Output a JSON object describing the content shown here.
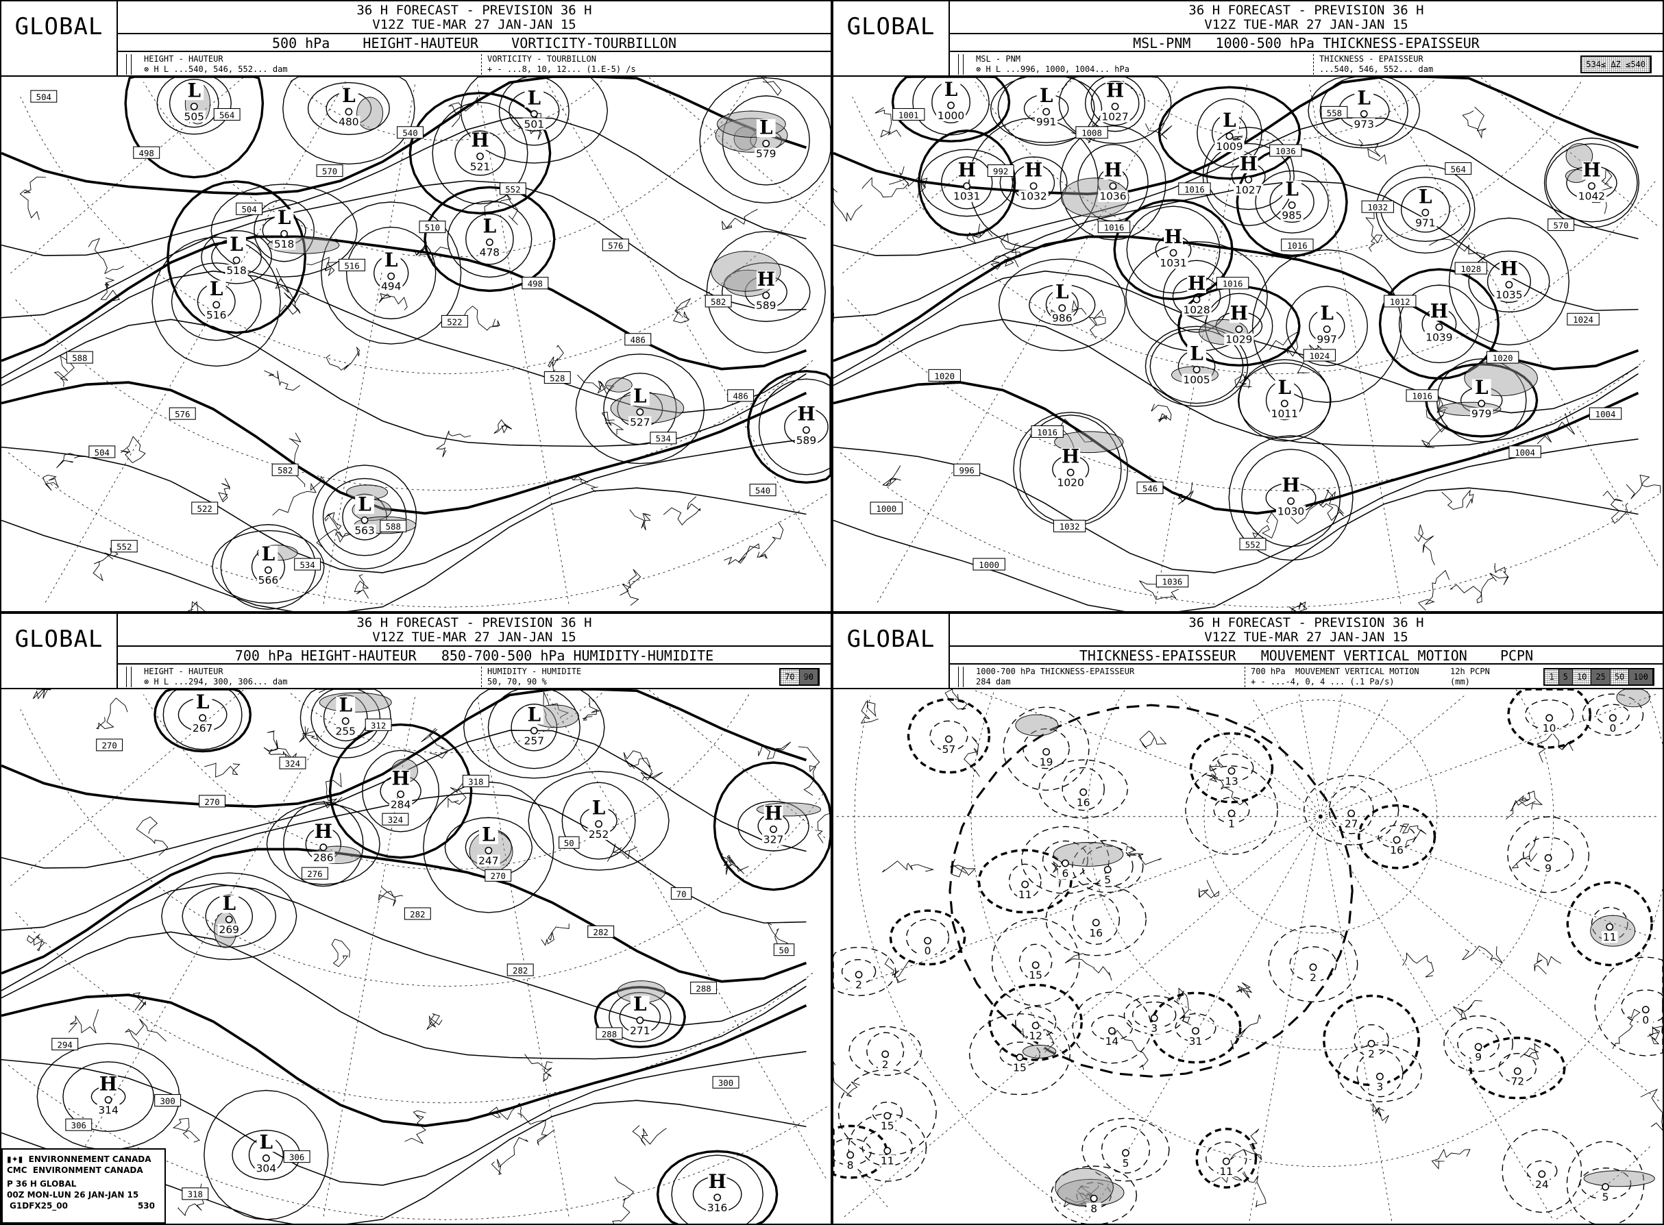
{
  "panels": [
    {
      "header": {
        "brand": "GLOBAL",
        "line1": "36 H FORECAST - PREVISION 36 H",
        "line2": "V12Z TUE-MAR 27 JAN-JAN 15",
        "title": "500 hPa    HEIGHT-HAUTEUR    VORTICITY-TOURBILLON",
        "legend_left_1": "HEIGHT - HAUTEUR",
        "legend_left_2": "⊗ H L ...540, 546, 552... dam",
        "legend_right_1": "VORTICITY - TOURBILLON",
        "legend_right_2": "+ - ...8, 10, 12... (1.E-5) /s"
      },
      "centers": [
        {
          "t": "L",
          "v": "505"
        },
        {
          "t": "L",
          "v": "480"
        },
        {
          "t": "L",
          "v": "501"
        },
        {
          "t": "H",
          "v": "521"
        },
        {
          "t": "L",
          "v": "579"
        },
        {
          "t": "L",
          "v": "518"
        },
        {
          "t": "L",
          "v": "518"
        },
        {
          "t": "L",
          "v": "516"
        },
        {
          "t": "L",
          "v": "494"
        },
        {
          "t": "L",
          "v": "478"
        },
        {
          "t": "H",
          "v": "589"
        },
        {
          "t": "L",
          "v": "527"
        },
        {
          "t": "H",
          "v": "589"
        },
        {
          "t": "L",
          "v": "563"
        },
        {
          "t": "L",
          "v": "566"
        }
      ],
      "contour_labels": [
        "504",
        "498",
        "504",
        "516",
        "522",
        "528",
        "534",
        "540",
        "552",
        "564",
        "570",
        "510",
        "498",
        "486",
        "486",
        "504",
        "522",
        "534",
        "540",
        "552",
        "576",
        "582",
        "588",
        "576",
        "582",
        "588"
      ]
    },
    {
      "header": {
        "brand": "GLOBAL",
        "line1": "36 H FORECAST - PREVISION 36 H",
        "line2": "V12Z TUE-MAR 27 JAN-JAN 15",
        "title": "MSL-PNM   1000-500 hPa THICKNESS-EPAISSEUR",
        "legend_left_1": "MSL - PNM",
        "legend_left_2": "⊗ H L ...996, 1000, 1004... hPa",
        "legend_right_1": "THICKNESS - EPAISSEUR",
        "legend_right_2": "...540, 546, 552... dam",
        "key": [
          "534≤ ΔZ ≤540"
        ]
      },
      "centers": [
        {
          "t": "L",
          "v": "1000"
        },
        {
          "t": "L",
          "v": "991"
        },
        {
          "t": "H",
          "v": "1027"
        },
        {
          "t": "L",
          "v": "1009"
        },
        {
          "t": "H",
          "v": "1027"
        },
        {
          "t": "L",
          "v": "973"
        },
        {
          "t": "H",
          "v": "1031"
        },
        {
          "t": "H",
          "v": "1032"
        },
        {
          "t": "H",
          "v": "1036"
        },
        {
          "t": "L",
          "v": "985"
        },
        {
          "t": "L",
          "v": "971"
        },
        {
          "t": "H",
          "v": "1042"
        },
        {
          "t": "H",
          "v": "1031"
        },
        {
          "t": "L",
          "v": "986"
        },
        {
          "t": "H",
          "v": "1028"
        },
        {
          "t": "H",
          "v": "1029"
        },
        {
          "t": "L",
          "v": "997"
        },
        {
          "t": "H",
          "v": "1035"
        },
        {
          "t": "H",
          "v": "1039"
        },
        {
          "t": "L",
          "v": "1005"
        },
        {
          "t": "L",
          "v": "1011"
        },
        {
          "t": "L",
          "v": "979"
        },
        {
          "t": "H",
          "v": "1020"
        },
        {
          "t": "H",
          "v": "1030"
        }
      ],
      "contour_labels": [
        "1001",
        "992",
        "1016",
        "1016",
        "1024",
        "1016",
        "1004",
        "1000",
        "1000",
        "1008",
        "1016",
        "1016",
        "1012",
        "1020",
        "1004",
        "996",
        "1032",
        "1036",
        "1036",
        "1032",
        "1028",
        "1024",
        "1020",
        "1016",
        "546",
        "552",
        "558",
        "564",
        "570"
      ]
    },
    {
      "header": {
        "brand": "GLOBAL",
        "line1": "36 H FORECAST - PREVISION 36 H",
        "line2": "V12Z TUE-MAR 27 JAN-JAN 15",
        "title": "700 hPa HEIGHT-HAUTEUR   850-700-500 hPa HUMIDITY-HUMIDITE",
        "legend_left_1": "HEIGHT - HAUTEUR",
        "legend_left_2": "⊗ H L ...294, 300, 306... dam",
        "legend_right_1": "HUMIDITY - HUMIDITE",
        "legend_right_2": "50, 70, 90 %",
        "key": [
          "70",
          "90"
        ]
      },
      "centers": [
        {
          "t": "L",
          "v": "267"
        },
        {
          "t": "L",
          "v": "255"
        },
        {
          "t": "L",
          "v": "257"
        },
        {
          "t": "H",
          "v": "284"
        },
        {
          "t": "H",
          "v": "286"
        },
        {
          "t": "L",
          "v": "252"
        },
        {
          "t": "H",
          "v": "327"
        },
        {
          "t": "L",
          "v": "247"
        },
        {
          "t": "L",
          "v": "269"
        },
        {
          "t": "L",
          "v": "271"
        },
        {
          "t": "H",
          "v": "314"
        },
        {
          "t": "L",
          "v": "304"
        },
        {
          "t": "H",
          "v": "316"
        }
      ],
      "contour_labels": [
        "270",
        "270",
        "276",
        "282",
        "282",
        "288",
        "300",
        "306",
        "318",
        "324",
        "324",
        "270",
        "282",
        "288",
        "294",
        "300",
        "306",
        "312",
        "318",
        "50",
        "70",
        "50"
      ],
      "credits": {
        "line1": "ENVIRONNEMENT CANADA",
        "line2": "ENVIRONMENT CANADA",
        "cmc": "CMC",
        "line3": "P 36 H GLOBAL",
        "line4": "00Z MON-LUN 26 JAN-JAN 15",
        "code": "G1DFX25_00",
        "number": "530"
      }
    },
    {
      "header": {
        "brand": "GLOBAL",
        "line1": "36 H FORECAST - PREVISION 36 H",
        "line2": "V12Z TUE-MAR 27 JAN-JAN 15",
        "title": "THICKNESS-EPAISSEUR   MOUVEMENT VERTICAL MOTION    PCPN",
        "legend_left_1": "1000-700 hPa THICKNESS-EPAISSEUR",
        "legend_left_2": "284 dam",
        "legend_right_1": "700 hPa  MOUVEMENT VERTICAL MOTION",
        "legend_right_2": "+ - ...-4, 0, 4 ... (.1 Pa/s)",
        "legend_pcpn_1": "12h PCPN",
        "legend_pcpn_2": "(mm)",
        "key": [
          "1",
          "5",
          "10",
          "25",
          "50",
          "100"
        ]
      },
      "centers": [
        {
          "t": "",
          "v": "57"
        },
        {
          "t": "",
          "v": "19"
        },
        {
          "t": "",
          "v": "16"
        },
        {
          "t": "",
          "v": "13"
        },
        {
          "t": "",
          "v": "1"
        },
        {
          "t": "",
          "v": "27"
        },
        {
          "t": "",
          "v": "16"
        },
        {
          "t": "",
          "v": "6"
        },
        {
          "t": "",
          "v": "5"
        },
        {
          "t": "",
          "v": "11"
        },
        {
          "t": "",
          "v": "16"
        },
        {
          "t": "",
          "v": "15"
        },
        {
          "t": "",
          "v": "0"
        },
        {
          "t": "",
          "v": "2"
        },
        {
          "t": "",
          "v": "2"
        },
        {
          "t": "",
          "v": "12"
        },
        {
          "t": "",
          "v": "14"
        },
        {
          "t": "",
          "v": "3"
        },
        {
          "t": "",
          "v": "31"
        },
        {
          "t": "",
          "v": "15"
        },
        {
          "t": "",
          "v": "2"
        },
        {
          "t": "",
          "v": "2"
        },
        {
          "t": "",
          "v": "3"
        },
        {
          "t": "",
          "v": "9"
        },
        {
          "t": "",
          "v": "72"
        },
        {
          "t": "",
          "v": "15"
        },
        {
          "t": "",
          "v": "11"
        },
        {
          "t": "",
          "v": "8"
        },
        {
          "t": "",
          "v": "5"
        },
        {
          "t": "",
          "v": "8"
        },
        {
          "t": "",
          "v": "11"
        },
        {
          "t": "",
          "v": "24"
        },
        {
          "t": "",
          "v": "5"
        },
        {
          "t": "",
          "v": "10"
        },
        {
          "t": "",
          "v": "0"
        },
        {
          "t": "",
          "v": "9"
        },
        {
          "t": "",
          "v": "11"
        },
        {
          "t": "",
          "v": "0"
        }
      ],
      "contour_labels": []
    }
  ],
  "colors": {
    "ink": "#000000",
    "paper": "#ffffff",
    "shade": "#9a9a9a"
  }
}
